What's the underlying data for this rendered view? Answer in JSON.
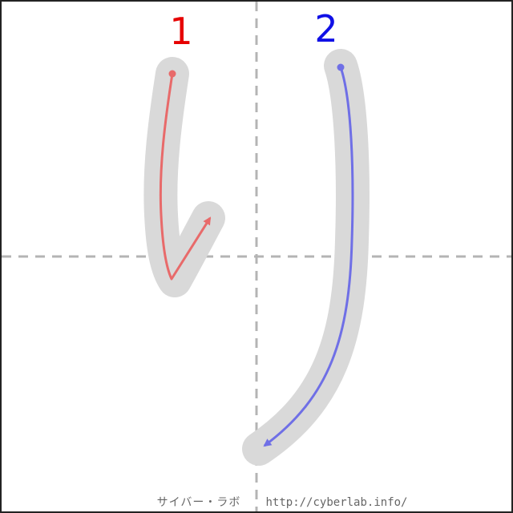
{
  "colors": {
    "background": "#ffffff",
    "border": "#222222",
    "guide": "#b4b4b4",
    "stroke_shadow": "#d9d9d9",
    "stroke1": "#e86a6a",
    "stroke1_number": "#e60000",
    "stroke2": "#6f6fe6",
    "stroke2_number": "#1010e6",
    "footer_text": "#666666"
  },
  "strokes": [
    {
      "number": "1",
      "direction": "down-then-up-right"
    },
    {
      "number": "2",
      "direction": "down-curving-left"
    }
  ],
  "footer": {
    "site_name": "サイバー・ラボ",
    "url": "http://cyberlab.info/"
  }
}
